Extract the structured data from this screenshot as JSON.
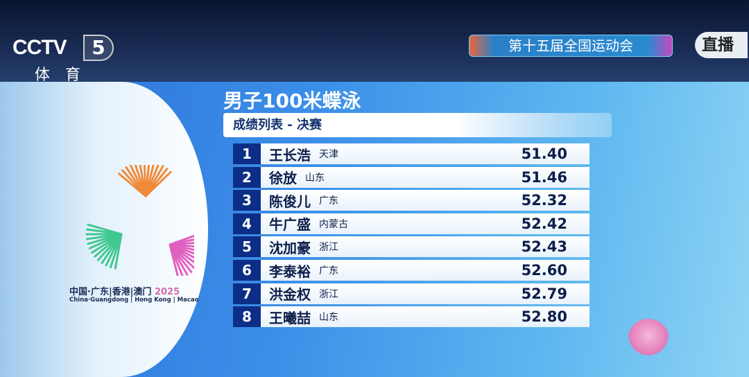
{
  "channel": {
    "brand": "CCTV",
    "number": "5",
    "name": "体育"
  },
  "event_banner": "第十五届全国运动会",
  "live_badge": "直播",
  "logo": {
    "cn": "中国·广东|香港|澳门",
    "year": "2025",
    "en": "China·Guangdong | Hong Kong | Macao"
  },
  "title": "男子100米蝶泳",
  "subtitle": "成绩列表 - 决赛",
  "results": [
    {
      "rank": "1",
      "name": "王长浩",
      "province": "天津",
      "time": "51.40"
    },
    {
      "rank": "2",
      "name": "徐放",
      "province": "山东",
      "time": "51.46"
    },
    {
      "rank": "3",
      "name": "陈俊儿",
      "province": "广东",
      "time": "52.32"
    },
    {
      "rank": "4",
      "name": "牛广盛",
      "province": "内蒙古",
      "time": "52.42"
    },
    {
      "rank": "5",
      "name": "沈加豪",
      "province": "浙江",
      "time": "52.43"
    },
    {
      "rank": "6",
      "name": "李泰裕",
      "province": "广东",
      "time": "52.60"
    },
    {
      "rank": "7",
      "name": "洪金权",
      "province": "浙江",
      "time": "52.79"
    },
    {
      "rank": "8",
      "name": "王曦喆",
      "province": "山东",
      "time": "52.80"
    }
  ],
  "colors": {
    "rank_bg": "#0d2e86",
    "panel": "#3b8fe8"
  }
}
